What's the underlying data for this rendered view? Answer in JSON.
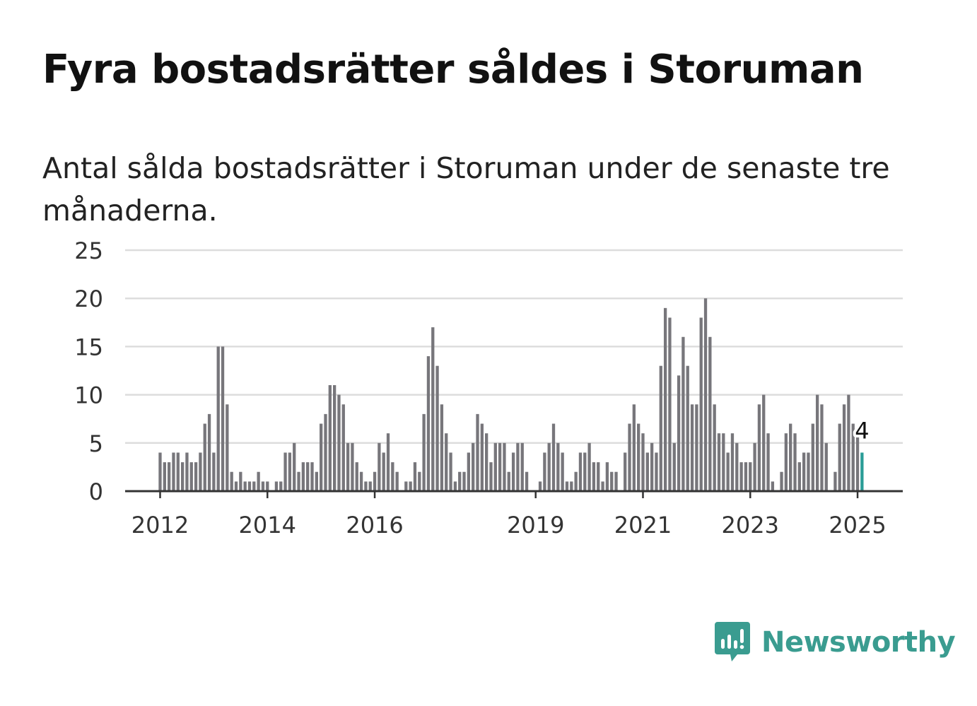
{
  "title": "Fyra bostadsrätter såldes i Storuman",
  "subtitle": "Antal sålda bostadsrätter i Storuman under de senaste tre månaderna.",
  "brand": {
    "name": "Newsworthy",
    "color": "#3a9c90",
    "icon": "newsworthy-logo-icon"
  },
  "colors": {
    "bar": "#77767b",
    "highlight": "#2a9d97",
    "grid": "#dddddd",
    "axis": "#333333"
  },
  "chart_data": {
    "type": "bar",
    "ylim": [
      0,
      25
    ],
    "yticks": [
      "0",
      "5",
      "10",
      "15",
      "20",
      "25"
    ],
    "xtick_labels": [
      {
        "label": "2012",
        "month": "2012-01"
      },
      {
        "label": "2014",
        "month": "2014-01"
      },
      {
        "label": "2016",
        "month": "2016-01"
      },
      {
        "label": "2019",
        "month": "2019-01"
      },
      {
        "label": "2021",
        "month": "2021-01"
      },
      {
        "label": "2023",
        "month": "2023-01"
      },
      {
        "label": "2025",
        "month": "2025-01"
      }
    ],
    "start_month": "2012-01",
    "values": [
      4,
      3,
      3,
      4,
      4,
      3,
      4,
      3,
      3,
      4,
      7,
      8,
      4,
      15,
      15,
      9,
      2,
      1,
      2,
      1,
      1,
      1,
      2,
      1,
      1,
      0,
      1,
      1,
      4,
      4,
      5,
      2,
      3,
      3,
      3,
      2,
      7,
      8,
      11,
      11,
      10,
      9,
      5,
      5,
      3,
      2,
      1,
      1,
      2,
      5,
      4,
      6,
      3,
      2,
      0,
      1,
      1,
      3,
      2,
      8,
      14,
      17,
      13,
      9,
      6,
      4,
      1,
      2,
      2,
      4,
      5,
      8,
      7,
      6,
      3,
      5,
      5,
      5,
      2,
      4,
      5,
      5,
      2,
      0,
      0,
      1,
      4,
      5,
      7,
      5,
      4,
      1,
      1,
      2,
      4,
      4,
      5,
      3,
      3,
      1,
      3,
      2,
      2,
      0,
      4,
      7,
      9,
      7,
      6,
      4,
      5,
      4,
      13,
      19,
      18,
      5,
      12,
      16,
      13,
      9,
      9,
      18,
      20,
      16,
      9,
      6,
      6,
      4,
      6,
      5,
      3,
      3,
      3,
      5,
      9,
      10,
      6,
      1,
      0,
      2,
      6,
      7,
      6,
      3,
      4,
      4,
      7,
      10,
      9,
      5,
      0,
      2,
      7,
      9,
      10,
      7,
      6,
      4
    ],
    "highlight_last": true,
    "last_value_label": "4"
  }
}
